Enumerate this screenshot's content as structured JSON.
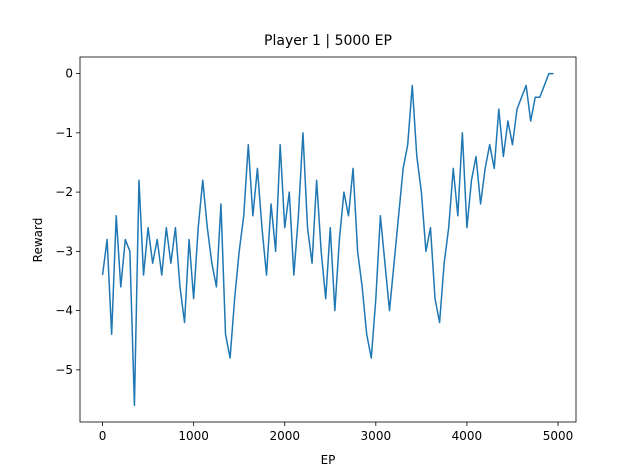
{
  "chart_data": {
    "type": "line",
    "title": "Player 1 | 5000 EP",
    "xlabel": "EP",
    "ylabel": "Reward",
    "x": [
      0,
      50,
      100,
      150,
      200,
      250,
      300,
      350,
      400,
      450,
      500,
      550,
      600,
      650,
      700,
      750,
      800,
      850,
      900,
      950,
      1000,
      1050,
      1100,
      1150,
      1200,
      1250,
      1300,
      1350,
      1400,
      1450,
      1500,
      1550,
      1600,
      1650,
      1700,
      1750,
      1800,
      1850,
      1900,
      1950,
      2000,
      2050,
      2100,
      2150,
      2200,
      2250,
      2300,
      2350,
      2400,
      2450,
      2500,
      2550,
      2600,
      2650,
      2700,
      2750,
      2800,
      2850,
      2900,
      2950,
      3000,
      3050,
      3100,
      3150,
      3200,
      3250,
      3300,
      3350,
      3400,
      3450,
      3500,
      3550,
      3600,
      3650,
      3700,
      3750,
      3800,
      3850,
      3900,
      3950,
      4000,
      4050,
      4100,
      4150,
      4200,
      4250,
      4300,
      4350,
      4400,
      4450,
      4500,
      4550,
      4600,
      4650,
      4700,
      4750,
      4800,
      4850,
      4900,
      4950
    ],
    "series": [
      {
        "name": "Player 1",
        "color": "#1f77b4",
        "values": [
          -3.4,
          -2.8,
          -4.4,
          -2.4,
          -3.6,
          -2.8,
          -3.0,
          -5.6,
          -1.8,
          -3.4,
          -2.6,
          -3.2,
          -2.8,
          -3.4,
          -2.6,
          -3.2,
          -2.6,
          -3.6,
          -4.2,
          -2.8,
          -3.8,
          -2.6,
          -1.8,
          -2.6,
          -3.2,
          -3.6,
          -2.2,
          -4.4,
          -4.8,
          -3.8,
          -3.0,
          -2.4,
          -1.2,
          -2.4,
          -1.6,
          -2.6,
          -3.4,
          -2.2,
          -3.0,
          -1.2,
          -2.6,
          -2.0,
          -3.4,
          -2.4,
          -1.0,
          -2.6,
          -3.2,
          -1.8,
          -3.0,
          -3.8,
          -2.6,
          -4.0,
          -2.8,
          -2.0,
          -2.4,
          -1.6,
          -3.0,
          -3.6,
          -4.4,
          -4.8,
          -3.8,
          -2.4,
          -3.2,
          -4.0,
          -3.2,
          -2.4,
          -1.6,
          -1.2,
          -0.2,
          -1.4,
          -2.0,
          -3.0,
          -2.6,
          -3.8,
          -4.2,
          -3.2,
          -2.6,
          -1.6,
          -2.4,
          -1.0,
          -2.6,
          -1.8,
          -1.4,
          -2.2,
          -1.6,
          -1.2,
          -1.6,
          -0.6,
          -1.4,
          -0.8,
          -1.2,
          -0.6,
          -0.4,
          -0.2,
          -0.8,
          -0.4,
          -0.4,
          -0.2,
          0,
          0
        ]
      }
    ],
    "xlim": [
      -247.5,
      5197.5
    ],
    "xticks": [
      0,
      1000,
      2000,
      3000,
      4000,
      5000
    ],
    "ylim": [
      -5.88,
      0.28
    ],
    "yticks": [
      {
        "value": -5,
        "label": "−5"
      },
      {
        "value": -4,
        "label": "−4"
      },
      {
        "value": -3,
        "label": "−3"
      },
      {
        "value": -2,
        "label": "−2"
      },
      {
        "value": -1,
        "label": "−1"
      },
      0
    ]
  }
}
